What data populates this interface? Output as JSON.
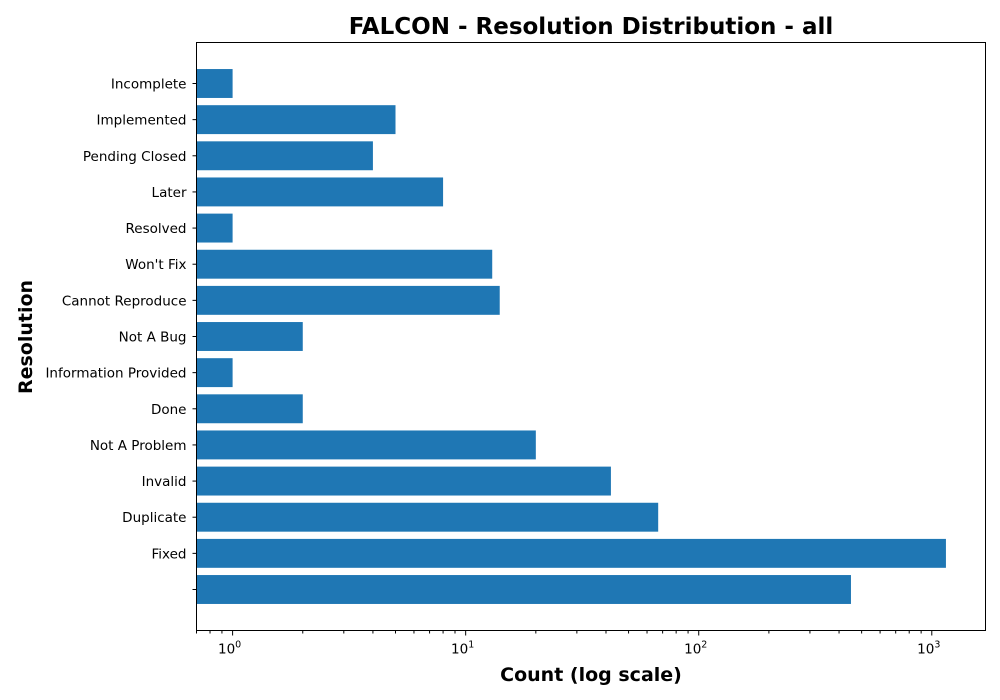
{
  "chart_data": {
    "type": "bar",
    "orientation": "horizontal",
    "title": "FALCON - Resolution Distribution - all",
    "xlabel": "Count (log scale)",
    "ylabel": "Resolution",
    "x_scale": "log",
    "xlim": [
      0.7,
      1700
    ],
    "x_ticks": [
      {
        "base": "10",
        "exp": "0",
        "value": 1
      },
      {
        "base": "10",
        "exp": "1",
        "value": 10
      },
      {
        "base": "10",
        "exp": "2",
        "value": 100
      },
      {
        "base": "10",
        "exp": "3",
        "value": 1000
      }
    ],
    "categories": [
      "",
      "Fixed",
      "Duplicate",
      "Invalid",
      "Not A Problem",
      "Done",
      "Information Provided",
      "Not A Bug",
      "Cannot Reproduce",
      "Won't Fix",
      "Resolved",
      "Later",
      "Pending Closed",
      "Implemented",
      "Incomplete"
    ],
    "values": [
      450,
      1150,
      67,
      42,
      20,
      2,
      1,
      2,
      14,
      13,
      1,
      8,
      4,
      5,
      1
    ],
    "bar_color": "#1f77b4",
    "grid": false
  }
}
